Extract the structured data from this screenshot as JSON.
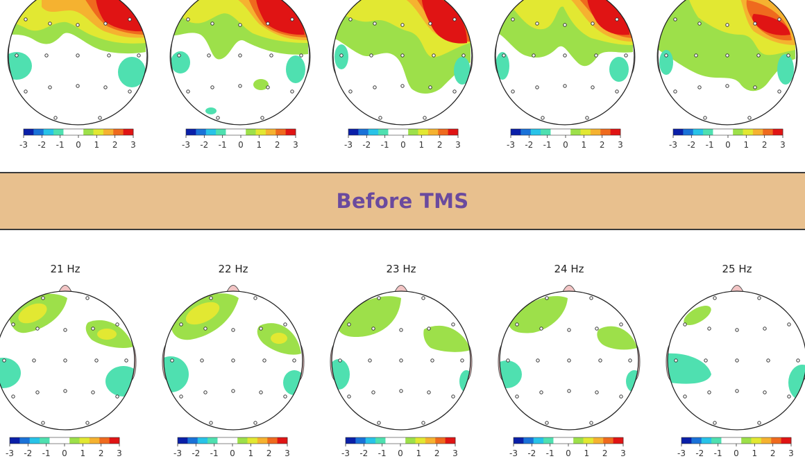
{
  "banner": {
    "label": "Before TMS"
  },
  "colorbar": {
    "ticks": [
      "-3",
      "-2",
      "-1",
      "0",
      "1",
      "2",
      "3"
    ],
    "colors": [
      "#0a1fa8",
      "#1a72d8",
      "#28c3e8",
      "#4fe0b0",
      "#ffffff",
      "#ffffff",
      "#9de04a",
      "#e2e832",
      "#f5b230",
      "#ef6a1e",
      "#e01414"
    ]
  },
  "top_row": {
    "maps": [
      {
        "id": "top-1"
      },
      {
        "id": "top-2"
      },
      {
        "id": "top-3"
      },
      {
        "id": "top-4"
      },
      {
        "id": "top-5"
      }
    ]
  },
  "bottom_row": {
    "maps": [
      {
        "id": "bot-1",
        "label": "21 Hz"
      },
      {
        "id": "bot-2",
        "label": "22 Hz"
      },
      {
        "id": "bot-3",
        "label": "23 Hz"
      },
      {
        "id": "bot-4",
        "label": "24 Hz"
      },
      {
        "id": "bot-5",
        "label": "25 Hz"
      }
    ]
  }
}
